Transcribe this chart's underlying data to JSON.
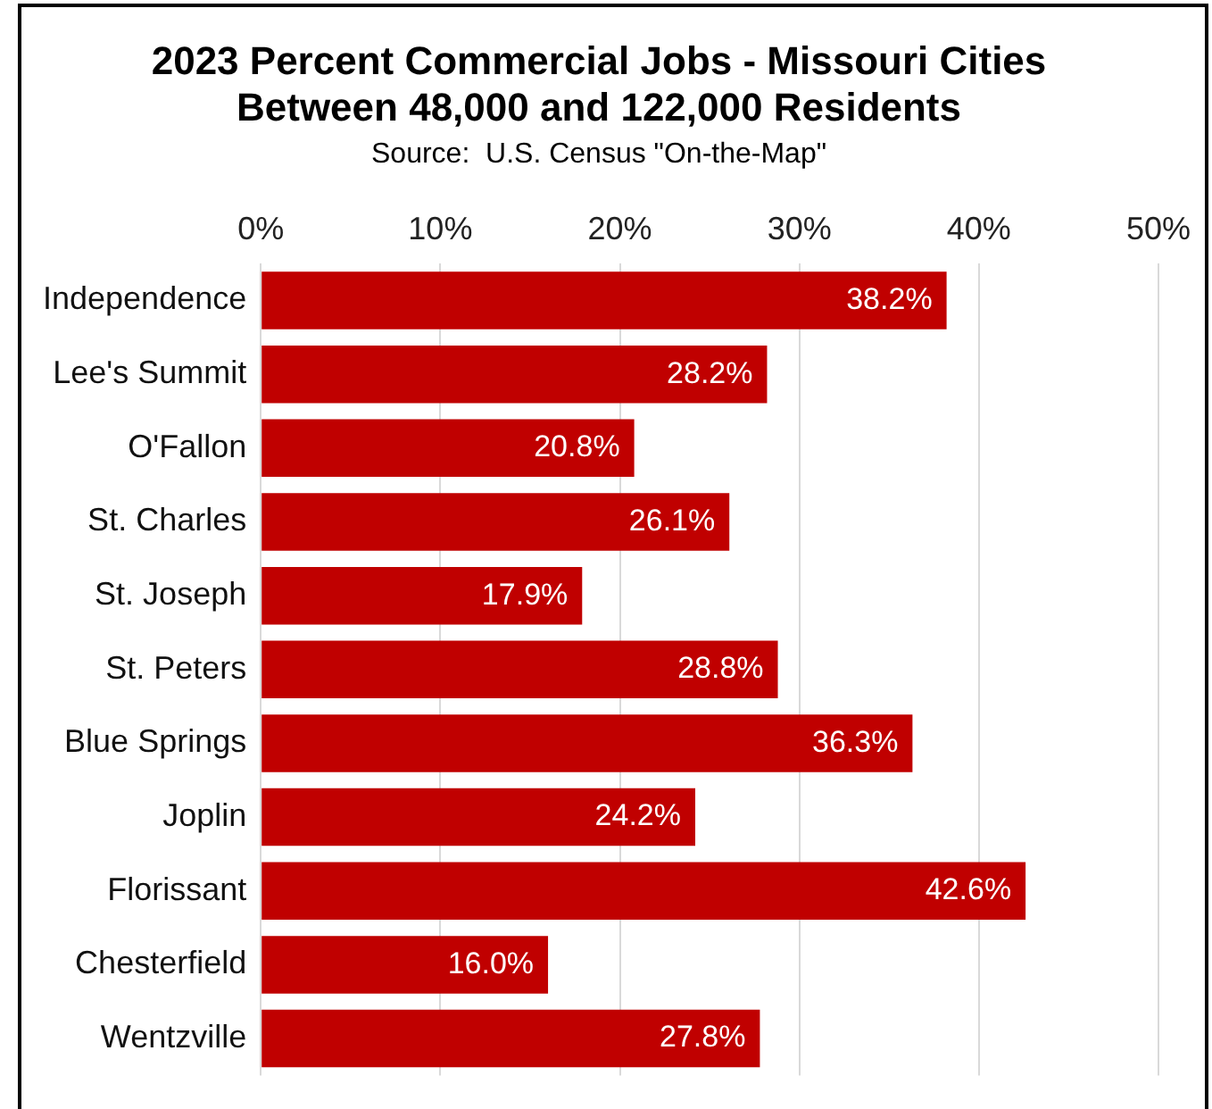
{
  "chart_data": {
    "type": "bar",
    "orientation": "horizontal",
    "title": "2023 Percent Commercial Jobs - Missouri Cities\nBetween 48,000 and 122,000 Residents",
    "subtitle": "Source:  U.S. Census \"On-the-Map\"",
    "categories": [
      "Independence",
      "Lee's Summit",
      "O'Fallon",
      "St. Charles",
      "St. Joseph",
      "St. Peters",
      "Blue Springs",
      "Joplin",
      "Florissant",
      "Chesterfield",
      "Wentzville"
    ],
    "values": [
      38.2,
      28.2,
      20.8,
      26.1,
      17.9,
      28.8,
      36.3,
      24.2,
      42.6,
      16.0,
      27.8
    ],
    "value_labels": [
      "38.2%",
      "28.2%",
      "20.8%",
      "26.1%",
      "17.9%",
      "28.8%",
      "36.3%",
      "24.2%",
      "42.6%",
      "16.0%",
      "27.8%"
    ],
    "color": "#c00000",
    "xlim": [
      0,
      50
    ],
    "xticks": [
      {
        "value": 0,
        "label": "0%"
      },
      {
        "value": 10,
        "label": "10%"
      },
      {
        "value": 20,
        "label": "20%"
      },
      {
        "value": 30,
        "label": "30%"
      },
      {
        "value": 40,
        "label": "40%"
      },
      {
        "value": 50,
        "label": "50%"
      }
    ],
    "grid": "x",
    "legend": false
  }
}
